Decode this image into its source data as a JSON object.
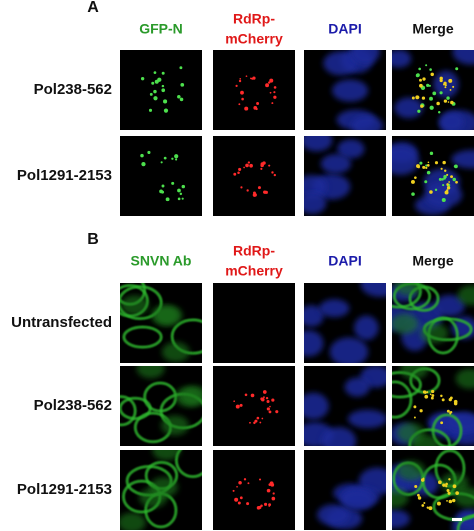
{
  "panels": [
    {
      "label": "A",
      "columns": [
        [
          "GFP-N"
        ],
        [
          "RdRp-",
          "mCherry"
        ],
        [
          "DAPI"
        ],
        [
          "Merge"
        ]
      ],
      "rows": [
        "Pol238-562",
        "Pol1291-2153"
      ]
    },
    {
      "label": "B",
      "columns": [
        [
          "SNVN Ab"
        ],
        [
          "RdRp-",
          "mCherry"
        ],
        [
          "DAPI"
        ],
        [
          "Merge"
        ]
      ],
      "rows": [
        "Untransfected",
        "Pol238-562",
        "Pol1291-2153"
      ]
    }
  ]
}
